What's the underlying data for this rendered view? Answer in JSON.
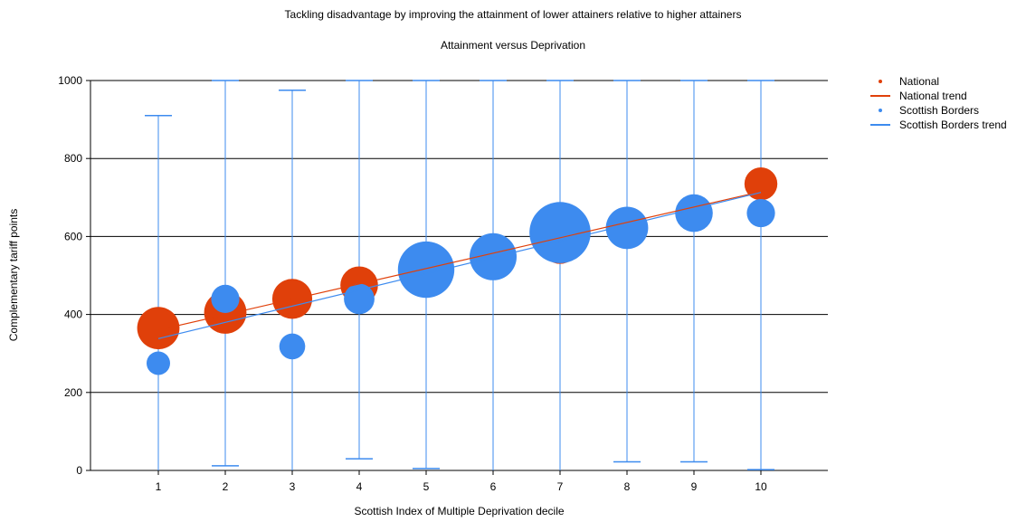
{
  "chart_data": {
    "type": "scatter",
    "title": "Tackling disadvantage by improving the attainment of lower attainers relative to higher attainers",
    "subtitle": "Attainment versus Deprivation",
    "xlabel": "Scottish Index of Multiple Deprivation decile",
    "ylabel": "Complementary tariff points",
    "x_categories": [
      "1",
      "2",
      "3",
      "4",
      "5",
      "6",
      "7",
      "8",
      "9",
      "10"
    ],
    "ylim": [
      0,
      1000
    ],
    "yticks": [
      "0",
      "200",
      "400",
      "600",
      "800",
      "1000"
    ],
    "grid": true,
    "legend_position": "top-right",
    "colors": {
      "national": "#E0400A",
      "borders": "#3D8BEF"
    },
    "series": [
      {
        "name": "National",
        "kind": "bubble",
        "x": [
          1,
          2,
          3,
          4,
          5,
          6,
          7,
          8,
          9,
          10
        ],
        "y": [
          365,
          405,
          440,
          475,
          520,
          550,
          575,
          625,
          665,
          735
        ],
        "size": [
          0.9,
          0.9,
          0.85,
          0.8,
          0.8,
          0.8,
          0.75,
          0.7,
          0.7,
          0.7
        ]
      },
      {
        "name": "National trend",
        "kind": "trend",
        "x": [
          1,
          10
        ],
        "y": [
          360,
          715
        ]
      },
      {
        "name": "Scottish Borders",
        "kind": "bubble",
        "x": [
          1,
          2,
          3,
          4,
          5,
          6,
          7,
          8,
          9,
          10
        ],
        "y": [
          275,
          440,
          318,
          440,
          515,
          548,
          610,
          622,
          660,
          660
        ],
        "size": [
          0.5,
          0.6,
          0.55,
          0.65,
          1.2,
          1.0,
          1.3,
          0.9,
          0.8,
          0.6
        ],
        "error_low": [
          null,
          12,
          null,
          30,
          5,
          null,
          null,
          22,
          22,
          2
        ],
        "error_high": [
          910,
          1000,
          975,
          1000,
          1000,
          1000,
          1000,
          1000,
          1000,
          1000
        ]
      },
      {
        "name": "Scottish Borders trend",
        "kind": "trend",
        "x": [
          1,
          10
        ],
        "y": [
          338,
          713
        ]
      }
    ]
  }
}
